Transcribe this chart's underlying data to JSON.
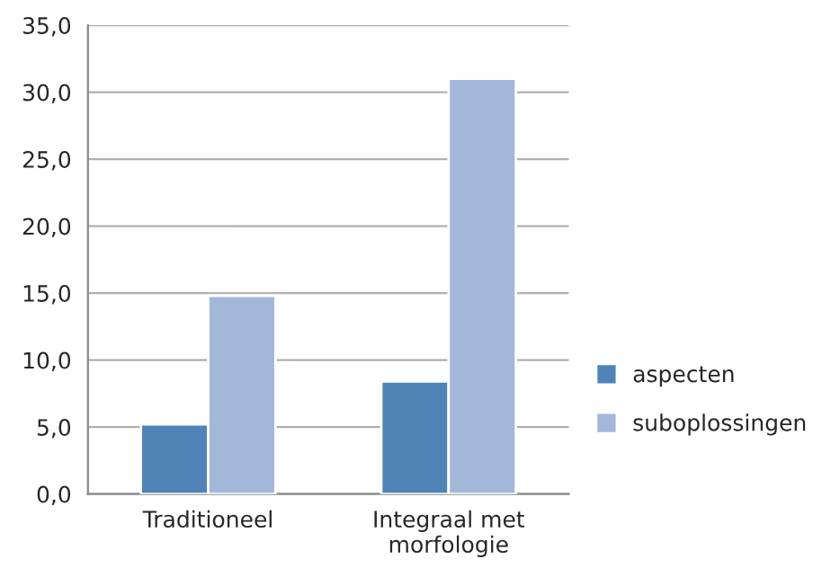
{
  "chart_data": {
    "type": "bar",
    "categories": [
      "Traditioneel",
      "Integraal met\nmorfologie"
    ],
    "series": [
      {
        "name": "aspecten",
        "color": "#5083b8",
        "values": [
          5.2,
          8.4
        ]
      },
      {
        "name": "suboplossingen",
        "color": "#a3b7d9",
        "values": [
          14.8,
          31.0
        ]
      }
    ],
    "ylim": [
      0,
      35
    ],
    "yticks": [
      {
        "value": 0,
        "label": "0,0"
      },
      {
        "value": 5,
        "label": "5,0"
      },
      {
        "value": 10,
        "label": "10,0"
      },
      {
        "value": 15,
        "label": "15,0"
      },
      {
        "value": 20,
        "label": "20,0"
      },
      {
        "value": 25,
        "label": "25,0"
      },
      {
        "value": 30,
        "label": "30,0"
      },
      {
        "value": 35,
        "label": "35,0"
      }
    ],
    "grid": "y",
    "legend": "right"
  }
}
